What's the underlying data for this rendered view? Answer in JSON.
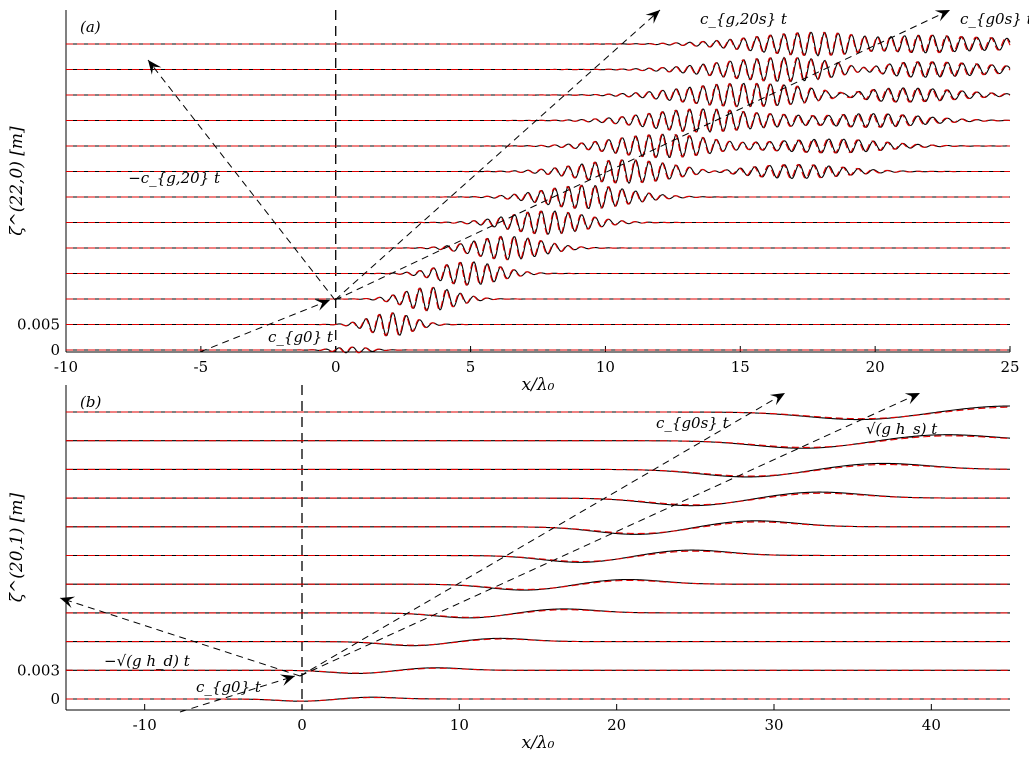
{
  "chart_data": [
    {
      "type": "line",
      "panel_label": "(a)",
      "xlabel": "x/λ₀",
      "ylabel": "ζ^(22,0)  [m]",
      "xlim": [
        -10,
        25
      ],
      "xticks": [
        "-10",
        "-5",
        "0",
        "5",
        "10",
        "15",
        "20",
        "25"
      ],
      "yticks": [
        "0",
        "0.005"
      ],
      "ytick_values": [
        0,
        0.005
      ],
      "trace_count": 13,
      "trace_spacing": 0.005,
      "series_styles": [
        {
          "style": "solid",
          "color": "#000000"
        },
        {
          "style": "dashed",
          "color": "#e00000"
        }
      ],
      "reference_line_x": 0,
      "annotations": [
        "c_{g,20s} t",
        "c_{g0s} t",
        "−c_{g,20} t",
        "c_{g0} t"
      ],
      "packet": {
        "type": "wave-packet",
        "wavelength": 0.5,
        "amplitude": 0.0023,
        "width_grows": true
      }
    },
    {
      "type": "line",
      "panel_label": "(b)",
      "xlabel": "x/λ₀",
      "ylabel": "ζ^(20,1)  [m]",
      "xlim": [
        -15,
        45
      ],
      "xticks": [
        "-10",
        "0",
        "10",
        "20",
        "30",
        "40"
      ],
      "yticks": [
        "0",
        "0.003"
      ],
      "ytick_values": [
        0,
        0.003
      ],
      "trace_count": 11,
      "trace_spacing": 0.003,
      "series_styles": [
        {
          "style": "solid",
          "color": "#000000"
        },
        {
          "style": "dashed",
          "color": "#e00000"
        }
      ],
      "reference_line_x": 0,
      "annotations": [
        "c_{g0s} t",
        "√(g h_s) t",
        "−√(g h_d) t",
        "c_{g0} t"
      ],
      "packet": {
        "type": "long-wave",
        "amplitude": 0.0008
      }
    }
  ]
}
